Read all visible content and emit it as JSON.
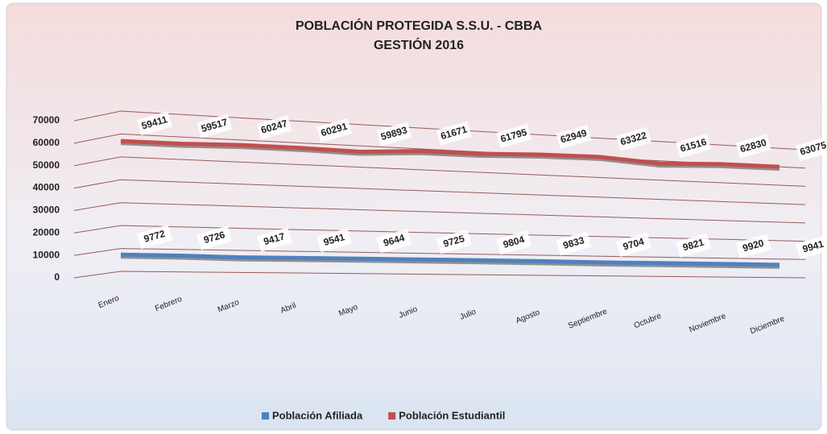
{
  "chart_data": {
    "type": "line3d",
    "title": "POBLACIÓN PROTEGIDA S.S.U. - CBBA",
    "subtitle": "GESTIÓN 2016",
    "categories": [
      "Enero",
      "Febrero",
      "Marzo",
      "Abril",
      "Mayo",
      "Junio",
      "Julio",
      "Agosto",
      "Septiembre",
      "Octubre",
      "Noviembre",
      "Diciembre"
    ],
    "series": [
      {
        "name": "Población Afiliada",
        "color": "#4f81bd",
        "values": [
          9772,
          9726,
          9417,
          9541,
          9644,
          9725,
          9804,
          9833,
          9704,
          9821,
          9920,
          9941
        ]
      },
      {
        "name": "Población Estudiantil",
        "color": "#c0504d",
        "values": [
          59411,
          59517,
          60247,
          60291,
          59893,
          61671,
          61795,
          62949,
          63322,
          61516,
          62830,
          63075
        ]
      }
    ],
    "ylim": [
      0,
      70000
    ],
    "yticks": [
      0,
      10000,
      20000,
      30000,
      40000,
      50000,
      60000,
      70000
    ],
    "grid": true,
    "legend": "bottom"
  }
}
